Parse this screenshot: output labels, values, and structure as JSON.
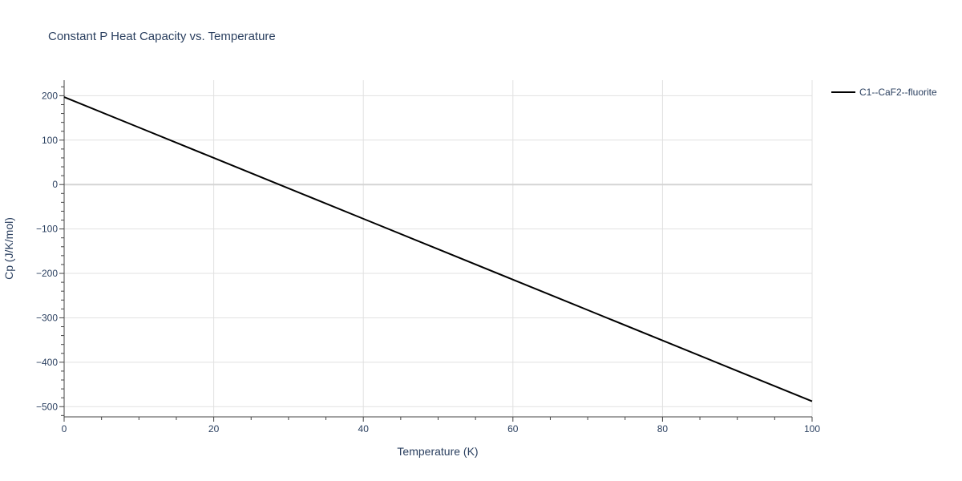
{
  "chart_data": {
    "type": "line",
    "title": "Constant P Heat Capacity vs. Temperature",
    "xlabel": "Temperature (K)",
    "ylabel": "Cp (J/K/mol)",
    "xlim": [
      0,
      100
    ],
    "ylim": [
      -523,
      235
    ],
    "x_ticks": [
      0,
      20,
      40,
      60,
      80,
      100
    ],
    "y_ticks": [
      200,
      100,
      0,
      -100,
      -200,
      -300,
      -400,
      -500
    ],
    "y_tick_labels": [
      "200",
      "100",
      "0",
      "−100",
      "−200",
      "−300",
      "−400",
      "−500"
    ],
    "grid": true,
    "legend_position": "top-right",
    "series": [
      {
        "name": "C1--CaF2--fluorite",
        "color": "#000000",
        "x": [
          0,
          10,
          20,
          30,
          40,
          50,
          60,
          70,
          80,
          90,
          100
        ],
        "y": [
          197,
          128.5,
          60,
          -8.5,
          -77,
          -145.5,
          -214,
          -282.5,
          -351,
          -419.5,
          -488
        ]
      }
    ]
  }
}
